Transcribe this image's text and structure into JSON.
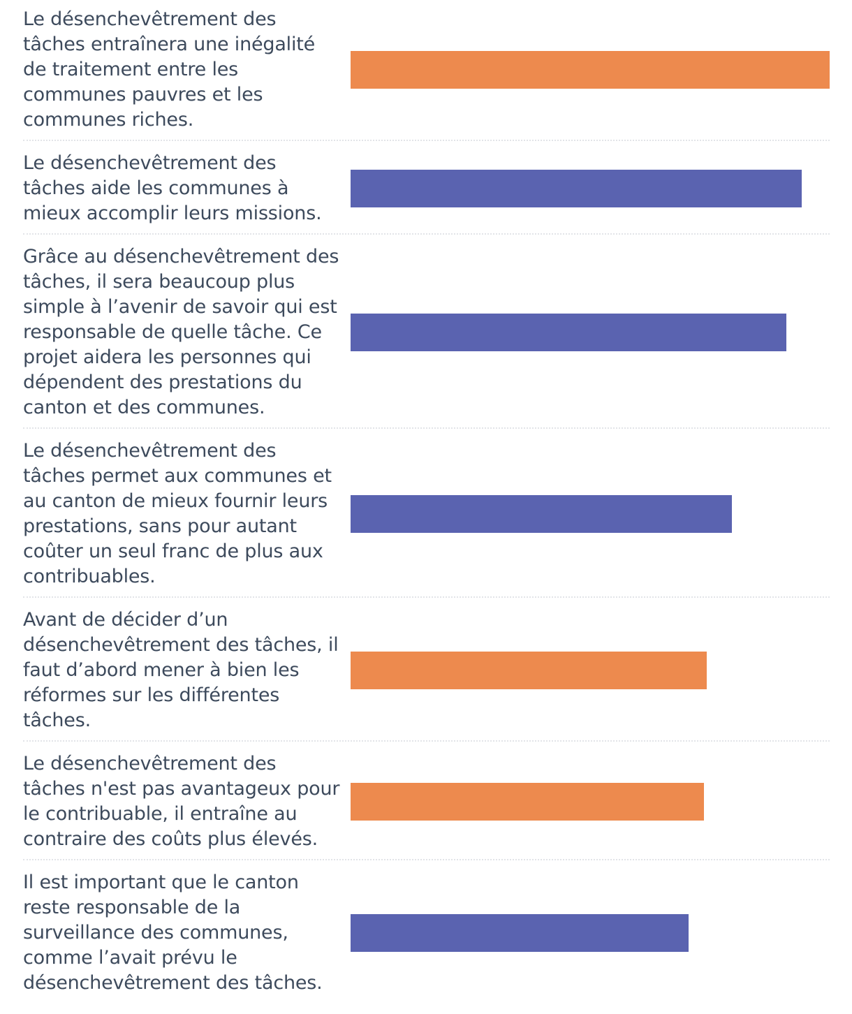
{
  "chart_data": {
    "type": "bar",
    "orientation": "horizontal",
    "title": "",
    "xlabel": "",
    "ylabel": "",
    "xlim": [
      0,
      100
    ],
    "colors": {
      "agree": "#ed8a4e",
      "disagree": "#5a63b0"
    },
    "bars": [
      {
        "label": "Le désenchevêtrement des tâches entraînera une inégalité de traitement entre les communes pauvres et les communes riches.",
        "value": 100,
        "color": "#ed8a4e"
      },
      {
        "label": "Le désenchevêtrement des tâches aide les communes à mieux accomplir leurs missions.",
        "value": 94.2,
        "color": "#5a63b0"
      },
      {
        "label": "Grâce au désenchevêtrement des tâches, il sera beaucoup plus simple à l’avenir de savoir qui est responsable de quelle tâche. Ce projet aidera les personnes qui dépendent des prestations du canton et des communes.",
        "value": 91,
        "color": "#5a63b0"
      },
      {
        "label": "Le désenchevêtrement des tâches permet aux communes et au canton de mieux fournir leurs prestations, sans pour autant coûter un seul franc de plus aux contribuables.",
        "value": 79.6,
        "color": "#5a63b0"
      },
      {
        "label": "Avant de décider d’un désenchevêtrement des tâches, il faut d’abord mener à bien les réformes sur les différentes tâches.",
        "value": 74.3,
        "color": "#ed8a4e"
      },
      {
        "label": "Le désenchevêtrement des tâches n'est pas avantageux pour le contribuable, il entraîne au contraire des coûts plus élevés.",
        "value": 73.8,
        "color": "#ed8a4e"
      },
      {
        "label": "Il est important que le canton reste responsable de la surveillance des communes, comme l’avait prévu le désenchevêtrement des tâches.",
        "value": 70.6,
        "color": "#5a63b0"
      }
    ]
  }
}
